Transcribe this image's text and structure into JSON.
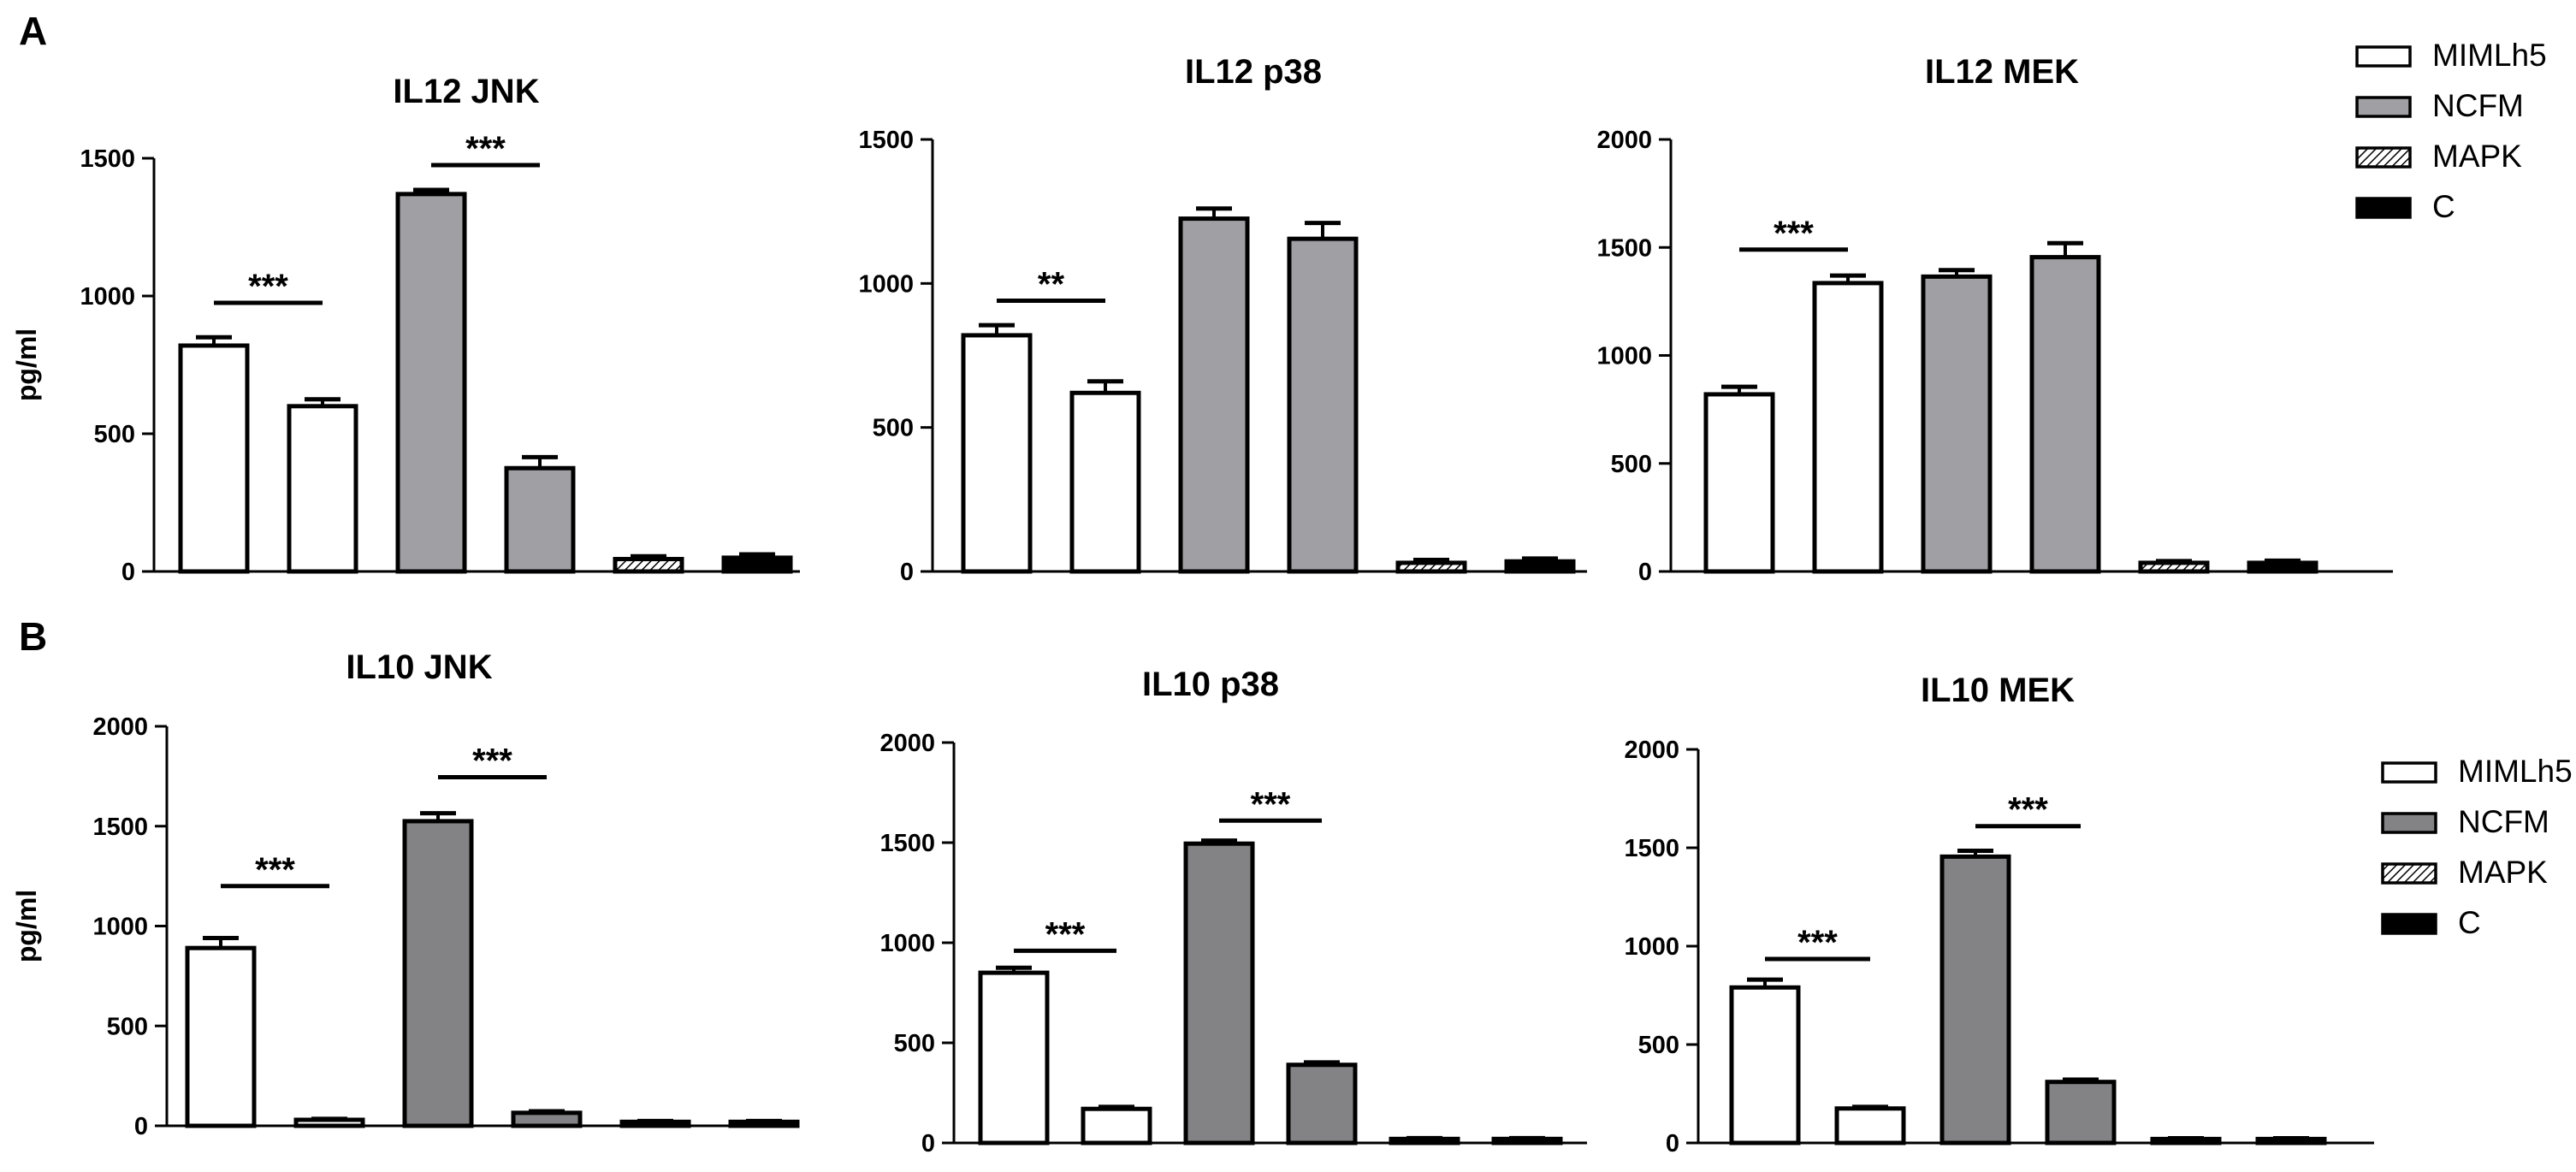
{
  "panels": [
    {
      "letter": "A"
    },
    {
      "letter": "B"
    }
  ],
  "legend": {
    "items": [
      {
        "label": "MIMLh5",
        "pattern": "white"
      },
      {
        "label": "NCFM",
        "pattern": "gray"
      },
      {
        "label": "MAPK",
        "pattern": "hatch"
      },
      {
        "label": "C",
        "pattern": "black"
      }
    ]
  },
  "colors": {
    "white": "#ffffff",
    "gray_light": "#a0a0a4",
    "gray_dark": "#838385",
    "black": "#000000"
  },
  "chart_data": [
    {
      "type": "bar",
      "title": "IL12 JNK",
      "ylabel": "pg/ml",
      "xlabel": "",
      "ylim": [
        0,
        1500
      ],
      "yticks": [
        0,
        500,
        1000,
        1500
      ],
      "gray": "gray_light",
      "bars": [
        {
          "value": 820,
          "error": 30,
          "fill": "white"
        },
        {
          "value": 600,
          "error": 25,
          "fill": "white"
        },
        {
          "value": 1370,
          "error": 15,
          "fill": "gray"
        },
        {
          "value": 375,
          "error": 40,
          "fill": "gray"
        },
        {
          "value": 45,
          "error": 10,
          "fill": "hatch"
        },
        {
          "value": 50,
          "error": 12,
          "fill": "black"
        }
      ],
      "significance": [
        {
          "bars": [
            0,
            1
          ],
          "label": "***",
          "y": 975
        },
        {
          "bars": [
            2,
            3
          ],
          "label": "***",
          "y": 1475
        }
      ]
    },
    {
      "type": "bar",
      "title": "IL12 p38",
      "ylabel": "",
      "xlabel": "",
      "ylim": [
        0,
        1500
      ],
      "yticks": [
        0,
        500,
        1000,
        1500
      ],
      "gray": "gray_light",
      "bars": [
        {
          "value": 820,
          "error": 35,
          "fill": "white"
        },
        {
          "value": 620,
          "error": 40,
          "fill": "white"
        },
        {
          "value": 1225,
          "error": 35,
          "fill": "gray"
        },
        {
          "value": 1155,
          "error": 55,
          "fill": "gray"
        },
        {
          "value": 30,
          "error": 10,
          "fill": "hatch"
        },
        {
          "value": 35,
          "error": 10,
          "fill": "black"
        }
      ],
      "significance": [
        {
          "bars": [
            0,
            1
          ],
          "label": "**",
          "y": 940
        }
      ]
    },
    {
      "type": "bar",
      "title": "IL12 MEK",
      "ylabel": "",
      "xlabel": "",
      "ylim": [
        0,
        2000
      ],
      "yticks": [
        0,
        500,
        1000,
        1500,
        2000
      ],
      "gray": "gray_light",
      "bars": [
        {
          "value": 820,
          "error": 35,
          "fill": "white"
        },
        {
          "value": 1335,
          "error": 35,
          "fill": "white"
        },
        {
          "value": 1365,
          "error": 30,
          "fill": "gray"
        },
        {
          "value": 1455,
          "error": 65,
          "fill": "gray"
        },
        {
          "value": 40,
          "error": 8,
          "fill": "hatch"
        },
        {
          "value": 40,
          "error": 10,
          "fill": "black"
        }
      ],
      "significance": [
        {
          "bars": [
            0,
            1
          ],
          "label": "***",
          "y": 1490
        }
      ]
    },
    {
      "type": "bar",
      "title": "IL10 JNK",
      "ylabel": "pg/ml",
      "xlabel": "",
      "ylim": [
        0,
        2000
      ],
      "yticks": [
        0,
        500,
        1000,
        1500,
        2000
      ],
      "gray": "gray_dark",
      "bars": [
        {
          "value": 890,
          "error": 50,
          "fill": "white"
        },
        {
          "value": 30,
          "error": 5,
          "fill": "white"
        },
        {
          "value": 1525,
          "error": 40,
          "fill": "gray"
        },
        {
          "value": 65,
          "error": 8,
          "fill": "gray"
        },
        {
          "value": 20,
          "error": 4,
          "fill": "white"
        },
        {
          "value": 20,
          "error": 4,
          "fill": "white"
        }
      ],
      "significance": [
        {
          "bars": [
            0,
            1
          ],
          "label": "***",
          "y": 1200
        },
        {
          "bars": [
            2,
            3
          ],
          "label": "***",
          "y": 1745
        }
      ]
    },
    {
      "type": "bar",
      "title": "IL10 p38",
      "ylabel": "",
      "xlabel": "",
      "ylim": [
        0,
        2000
      ],
      "yticks": [
        0,
        500,
        1000,
        1500,
        2000
      ],
      "gray": "gray_dark",
      "bars": [
        {
          "value": 850,
          "error": 25,
          "fill": "white"
        },
        {
          "value": 170,
          "error": 10,
          "fill": "white"
        },
        {
          "value": 1495,
          "error": 15,
          "fill": "gray"
        },
        {
          "value": 390,
          "error": 12,
          "fill": "gray"
        },
        {
          "value": 20,
          "error": 4,
          "fill": "white"
        },
        {
          "value": 20,
          "error": 4,
          "fill": "white"
        }
      ],
      "significance": [
        {
          "bars": [
            0,
            1
          ],
          "label": "***",
          "y": 960
        },
        {
          "bars": [
            2,
            3
          ],
          "label": "***",
          "y": 1610
        }
      ]
    },
    {
      "type": "bar",
      "title": "IL10 MEK",
      "ylabel": "",
      "xlabel": "",
      "ylim": [
        0,
        2000
      ],
      "yticks": [
        0,
        500,
        1000,
        1500,
        2000
      ],
      "gray": "gray_dark",
      "bars": [
        {
          "value": 790,
          "error": 40,
          "fill": "white"
        },
        {
          "value": 175,
          "error": 8,
          "fill": "white"
        },
        {
          "value": 1455,
          "error": 30,
          "fill": "gray"
        },
        {
          "value": 310,
          "error": 12,
          "fill": "gray"
        },
        {
          "value": 20,
          "error": 4,
          "fill": "white"
        },
        {
          "value": 20,
          "error": 4,
          "fill": "white"
        }
      ],
      "significance": [
        {
          "bars": [
            0,
            1
          ],
          "label": "***",
          "y": 935
        },
        {
          "bars": [
            2,
            3
          ],
          "label": "***",
          "y": 1610
        }
      ]
    }
  ]
}
